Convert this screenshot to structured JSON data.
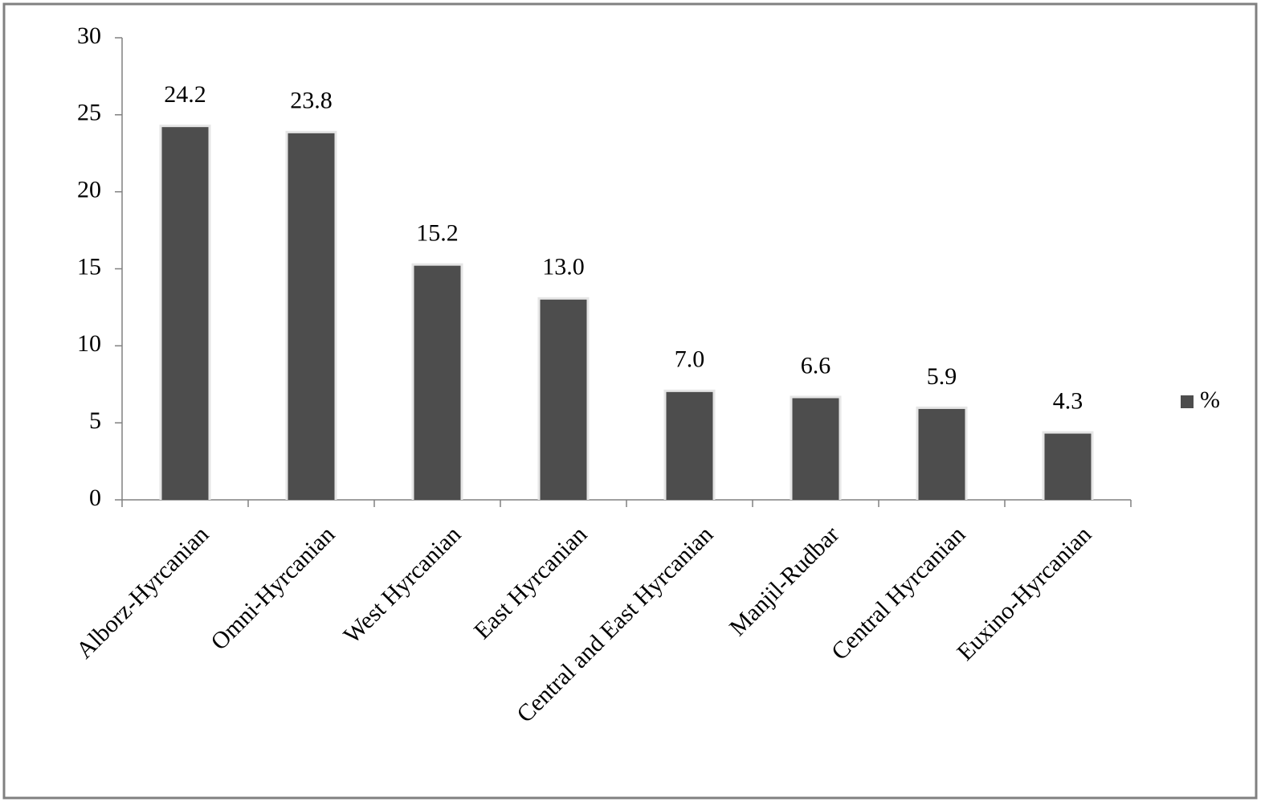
{
  "chart_data": {
    "type": "bar",
    "categories": [
      "Alborz-Hyrcanian",
      "Omni-Hyrcanian",
      "West Hyrcanian",
      "East Hyrcanian",
      "Central and East Hyrcanian",
      "Manjil-Rudbar",
      "Central Hyrcanian",
      "Euxino-Hyrcanian"
    ],
    "series": [
      {
        "name": "%",
        "color": "#4d4d4d",
        "values": [
          24.2,
          23.8,
          15.2,
          13.0,
          7.0,
          6.6,
          5.9,
          4.3
        ],
        "value_labels": [
          "24.2",
          "23.8",
          "15.2",
          "13.0",
          "7.0",
          "6.6",
          "5.9",
          "4.3"
        ]
      }
    ],
    "ylim": [
      0,
      30
    ],
    "yticks": [
      0,
      5,
      10,
      15,
      20,
      25,
      30
    ],
    "grid": false,
    "legend": "right"
  }
}
